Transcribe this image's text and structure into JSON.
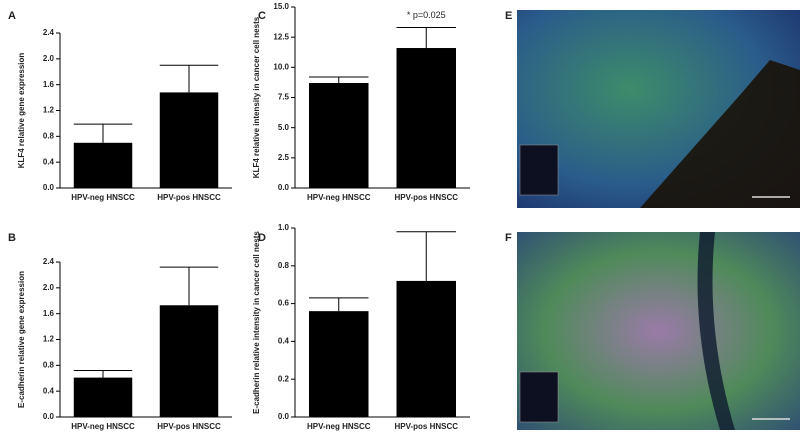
{
  "chart_data": [
    {
      "type": "bar",
      "panel_label": "A",
      "y_label": "KLF4 relative gene expression",
      "categories": [
        "HPV-neg HNSCC",
        "HPV-pos HNSCC"
      ],
      "values": [
        0.7,
        1.48
      ],
      "errors": [
        0.29,
        0.42
      ],
      "color": "#000000",
      "ylim": [
        0,
        2.4
      ],
      "yticks": [
        {
          "value": 0,
          "label": "0.0"
        },
        0.4,
        0.8,
        1.2,
        1.6,
        {
          "value": 2,
          "label": "2.0"
        },
        2.4
      ]
    },
    {
      "type": "bar",
      "panel_label": "B",
      "y_label": "E-cadherin relative gene expression",
      "categories": [
        "HPV-neg HNSCC",
        "HPV-pos HNSCC"
      ],
      "values": [
        0.61,
        1.73
      ],
      "errors": [
        0.11,
        0.59
      ],
      "color": "#000000",
      "ylim": [
        0,
        2.4
      ],
      "yticks": [
        {
          "value": 0,
          "label": "0.0"
        },
        0.4,
        0.8,
        1.2,
        1.6,
        {
          "value": 2,
          "label": "2.0"
        },
        2.4
      ]
    },
    {
      "type": "bar",
      "panel_label": "C",
      "y_label": "KLF4 relative intensity in cancer cell nests",
      "annotation": "* p=0.025",
      "categories": [
        "HPV-neg HNSCC",
        "HPV-pos HNSCC"
      ],
      "values": [
        8.7,
        11.6
      ],
      "errors": [
        0.5,
        1.7
      ],
      "color": "#000000",
      "ylim": [
        0,
        15
      ],
      "yticks": [
        {
          "value": 0,
          "label": "0.0"
        },
        2.5,
        {
          "value": 5,
          "label": "5.0"
        },
        7.5,
        {
          "value": 10,
          "label": "10.0"
        },
        12.5,
        {
          "value": 15,
          "label": "15.0"
        }
      ]
    },
    {
      "type": "bar",
      "panel_label": "D",
      "y_label": "E-cadherin relative intensity in cancer cell nests",
      "categories": [
        "HPV-neg HNSCC",
        "HPV-pos HNSCC"
      ],
      "values": [
        0.56,
        0.72
      ],
      "errors": [
        0.07,
        0.26
      ],
      "color": "#000000",
      "ylim": [
        0,
        1
      ],
      "yticks": [
        {
          "value": 0,
          "label": "0.0"
        },
        0.2,
        0.4,
        0.6,
        0.8,
        {
          "value": 1,
          "label": "1.0"
        }
      ]
    }
  ],
  "images": [
    {
      "panel_label": "E"
    },
    {
      "panel_label": "F"
    }
  ]
}
